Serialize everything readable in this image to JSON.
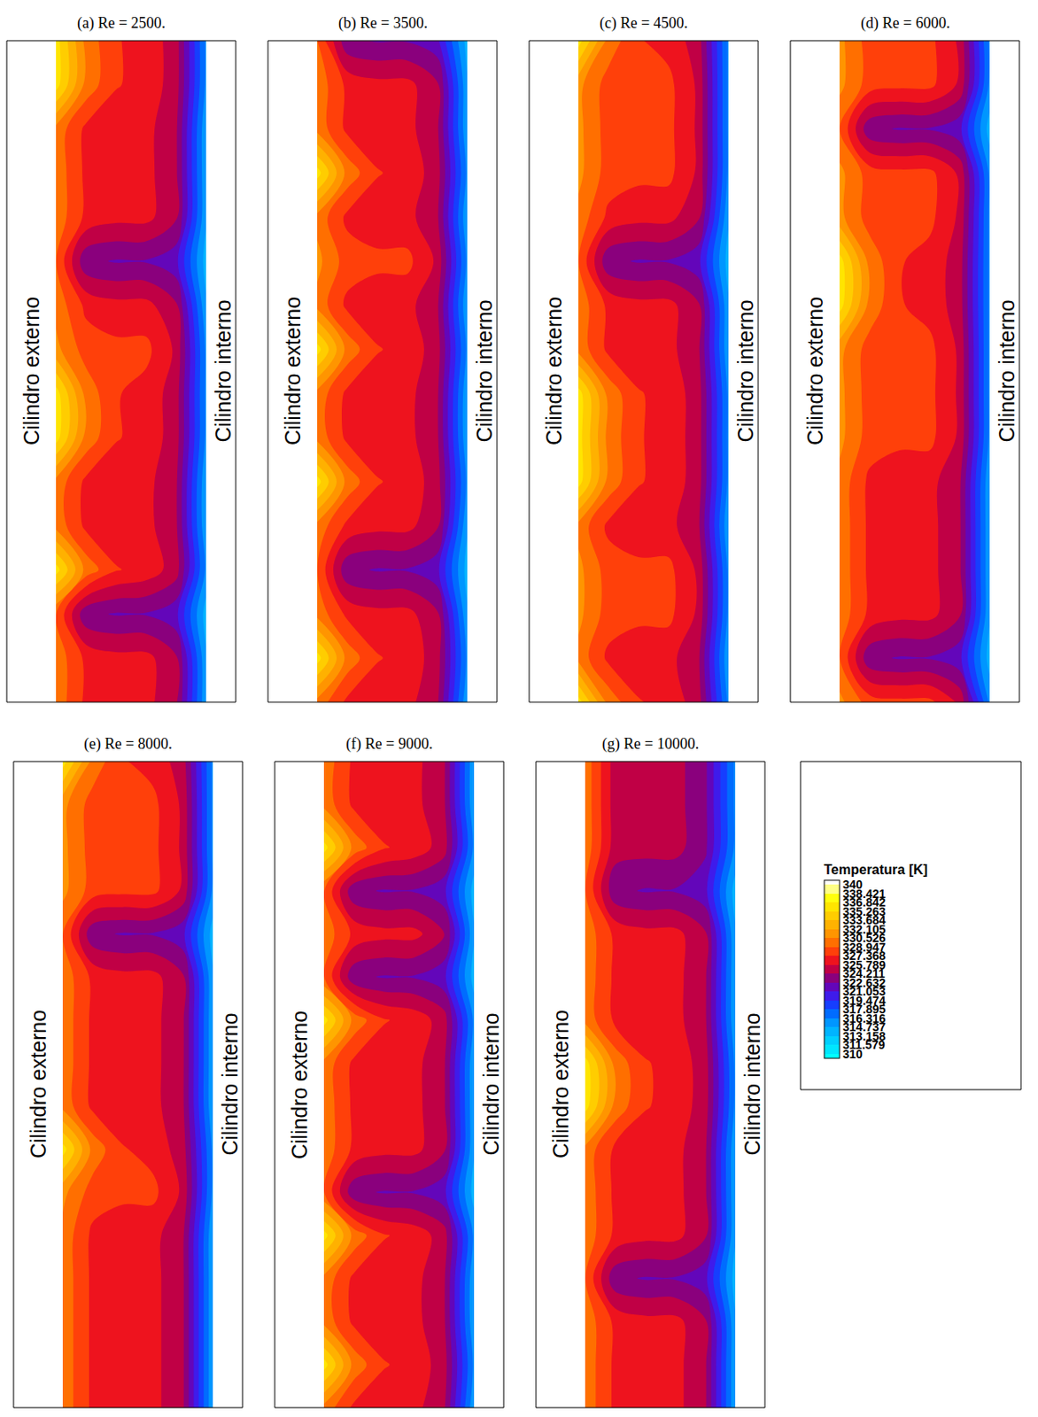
{
  "chart_data": {
    "type": "contour",
    "panels": [
      {
        "title": "(a) Re = 2500.",
        "left_label": "Cilindro externo",
        "right_label": "Cilindro interno",
        "cells": [
          [
            336,
            330,
            327.5,
            326.8,
            325,
            316
          ],
          [
            336,
            330,
            327.5,
            326.8,
            325,
            316
          ],
          [
            330,
            327,
            326.3,
            326.3,
            324.5,
            315
          ],
          [
            330,
            327,
            326.3,
            326.3,
            324.5,
            315
          ],
          [
            330,
            327,
            326.3,
            326.3,
            324.5,
            315
          ],
          [
            329,
            323,
            322.5,
            322.5,
            321.5,
            314
          ],
          [
            330,
            327,
            326.3,
            326.3,
            324.5,
            315
          ],
          [
            331,
            328.2,
            327.8,
            327.8,
            325.5,
            316
          ],
          [
            336,
            330,
            327.5,
            326.8,
            325,
            316
          ],
          [
            336,
            330,
            327.5,
            326.8,
            325,
            316
          ],
          [
            330,
            327,
            326.3,
            326.3,
            324.5,
            315
          ],
          [
            330,
            327,
            326.3,
            326.3,
            324.5,
            315
          ],
          [
            336,
            330,
            327.5,
            326.8,
            325,
            316
          ],
          [
            329,
            323,
            322.5,
            322.5,
            321.5,
            314
          ],
          [
            330,
            327,
            326.3,
            326.3,
            324.5,
            315
          ],
          [
            330,
            327,
            326.3,
            326.3,
            324.5,
            315
          ]
        ]
      },
      {
        "title": "(b) Re = 3500.",
        "left_label": "Cilindro externo",
        "right_label": "Cilindro interno",
        "cells": [
          [
            329,
            323,
            322.5,
            322.5,
            321.5,
            314
          ],
          [
            330,
            327,
            326.3,
            326.3,
            324.5,
            315
          ],
          [
            330,
            327,
            326.3,
            326.3,
            324.5,
            315
          ],
          [
            336,
            330,
            327.5,
            326.8,
            325,
            316
          ],
          [
            330,
            327,
            326.3,
            326.3,
            324.5,
            315
          ],
          [
            331,
            328.2,
            327.8,
            327.8,
            325.5,
            316
          ],
          [
            330,
            327,
            326.3,
            326.3,
            324.5,
            315
          ],
          [
            336,
            330,
            327.5,
            326.8,
            325,
            316
          ],
          [
            330,
            327,
            326.3,
            326.3,
            324.5,
            315
          ],
          [
            330,
            327,
            326.3,
            326.3,
            324.5,
            315
          ],
          [
            336,
            330,
            327.5,
            326.8,
            325,
            316
          ],
          [
            330,
            327,
            326.3,
            326.3,
            324.5,
            315
          ],
          [
            329,
            323,
            322.5,
            322.5,
            321.5,
            314
          ],
          [
            330,
            327,
            326.3,
            326.3,
            324.5,
            315
          ],
          [
            336,
            330,
            327.5,
            326.8,
            325,
            316
          ],
          [
            330,
            327,
            326.3,
            326.3,
            324.5,
            315
          ]
        ]
      },
      {
        "title": "(c) Re = 4500.",
        "left_label": "Cilindro externo",
        "right_label": "Cilindro interno",
        "cells": [
          [
            336,
            330,
            327.5,
            326.8,
            325,
            316
          ],
          [
            331,
            328.2,
            327.8,
            327.8,
            325.5,
            316
          ],
          [
            331,
            328.2,
            327.8,
            327.8,
            325.5,
            316
          ],
          [
            331,
            328.2,
            327.8,
            327.8,
            325.5,
            316
          ],
          [
            330,
            327,
            326.3,
            326.3,
            324.5,
            315
          ],
          [
            329,
            323,
            322.5,
            322.5,
            321.5,
            314
          ],
          [
            330,
            327,
            326.3,
            326.3,
            324.5,
            315
          ],
          [
            330,
            327,
            326.3,
            326.3,
            324.5,
            315
          ],
          [
            336,
            330,
            327.5,
            326.8,
            325,
            316
          ],
          [
            336,
            330,
            327.5,
            326.8,
            325,
            316
          ],
          [
            336,
            330,
            327.5,
            326.8,
            325,
            316
          ],
          [
            330,
            327,
            326.3,
            326.3,
            324.5,
            315
          ],
          [
            331,
            328.2,
            327.8,
            327.8,
            325.5,
            316
          ],
          [
            331,
            328.2,
            327.8,
            327.8,
            325.5,
            316
          ],
          [
            330,
            327,
            326.3,
            326.3,
            324.5,
            315
          ],
          [
            336,
            330,
            327.5,
            326.8,
            325,
            316
          ]
        ]
      },
      {
        "title": "(d) Re = 6000.",
        "left_label": "Cilindro externo",
        "right_label": "Cilindro interno",
        "cells": [
          [
            331,
            328.2,
            327.8,
            327.8,
            325.5,
            316
          ],
          [
            331,
            328.2,
            327.8,
            327.8,
            325.5,
            316
          ],
          [
            329,
            323,
            322.5,
            322.5,
            321.5,
            314
          ],
          [
            331,
            328.2,
            327.8,
            327.8,
            325.5,
            316
          ],
          [
            331,
            328.2,
            327.8,
            327.8,
            325.5,
            316
          ],
          [
            336,
            330,
            327.5,
            326.8,
            325,
            316
          ],
          [
            336,
            330,
            327.5,
            326.8,
            325,
            316
          ],
          [
            331,
            328.2,
            327.8,
            327.8,
            325.5,
            316
          ],
          [
            331,
            328.2,
            327.8,
            327.8,
            325.5,
            316
          ],
          [
            331,
            328.2,
            327.8,
            327.8,
            325.5,
            316
          ],
          [
            330,
            327,
            326.3,
            326.3,
            324.5,
            315
          ],
          [
            330,
            327,
            326.3,
            326.3,
            324.5,
            315
          ],
          [
            330,
            327,
            326.3,
            326.3,
            324.5,
            315
          ],
          [
            330,
            327,
            326.3,
            326.3,
            324.5,
            315
          ],
          [
            329,
            323,
            322.5,
            322.5,
            321.5,
            314
          ],
          [
            331,
            328.2,
            327.8,
            327.8,
            325.5,
            316
          ]
        ]
      },
      {
        "title": "(e) Re = 8000.",
        "left_label": "Cilindro externo",
        "right_label": "Cilindro interno",
        "cells": [
          [
            336,
            330,
            327.5,
            326.8,
            325,
            316
          ],
          [
            331,
            328.2,
            327.8,
            327.8,
            325.5,
            316
          ],
          [
            331,
            328.2,
            327.8,
            327.8,
            325.5,
            316
          ],
          [
            331,
            328.2,
            327.8,
            327.8,
            325.5,
            316
          ],
          [
            329,
            323,
            322.5,
            322.5,
            321.5,
            314
          ],
          [
            330,
            327,
            326.3,
            326.3,
            324.5,
            315
          ],
          [
            330,
            327,
            326.3,
            326.3,
            324.5,
            315
          ],
          [
            330,
            327,
            326.3,
            326.3,
            324.5,
            315
          ],
          [
            330,
            327,
            326.3,
            326.3,
            324.5,
            315
          ],
          [
            336,
            330,
            327.5,
            326.8,
            325,
            316
          ],
          [
            331,
            328.2,
            327.8,
            327.8,
            325.5,
            316
          ],
          [
            330,
            327,
            326.3,
            326.3,
            324.5,
            315
          ],
          [
            330,
            327,
            326.3,
            326.3,
            324.5,
            315
          ],
          [
            330,
            327,
            326.3,
            326.3,
            324.5,
            315
          ],
          [
            330,
            327,
            326.3,
            326.3,
            324.5,
            315
          ],
          [
            330,
            327,
            326.3,
            326.3,
            324.5,
            315
          ]
        ]
      },
      {
        "title": "(f) Re = 9000.",
        "left_label": "Cilindro externo",
        "right_label": "Cilindro interno",
        "cells": [
          [
            330,
            327,
            326.3,
            326.3,
            324.5,
            315
          ],
          [
            330,
            327,
            326.3,
            326.3,
            324.5,
            315
          ],
          [
            336,
            330,
            327.5,
            326.8,
            325,
            316
          ],
          [
            329,
            323,
            322.5,
            322.5,
            321.5,
            314
          ],
          [
            330,
            327,
            326.3,
            326.3,
            324.5,
            315
          ],
          [
            329,
            323,
            322.5,
            322.5,
            321.5,
            314
          ],
          [
            336,
            330,
            327.5,
            326.8,
            325,
            316
          ],
          [
            330,
            327,
            326.3,
            326.3,
            324.5,
            315
          ],
          [
            330,
            327,
            326.3,
            326.3,
            324.5,
            315
          ],
          [
            330,
            327,
            326.3,
            326.3,
            324.5,
            315
          ],
          [
            329,
            323,
            322.5,
            322.5,
            321.5,
            314
          ],
          [
            336,
            330,
            327.5,
            326.8,
            325,
            316
          ],
          [
            330,
            327,
            326.3,
            326.3,
            324.5,
            315
          ],
          [
            330,
            327,
            326.3,
            326.3,
            324.5,
            315
          ],
          [
            336,
            330,
            327.5,
            326.8,
            325,
            316
          ],
          [
            330,
            327,
            326.3,
            326.3,
            324.5,
            315
          ]
        ]
      },
      {
        "title": "(g) Re = 10000.",
        "left_label": "Cilindro externo",
        "right_label": "Cilindro interno",
        "cells": [
          [
            330,
            325,
            324.8,
            324.8,
            323,
            316
          ],
          [
            330,
            325,
            324.8,
            324.8,
            323,
            316
          ],
          [
            330,
            325,
            324.8,
            324.8,
            323,
            316
          ],
          [
            329,
            323,
            322.5,
            322.5,
            321.5,
            314
          ],
          [
            330,
            327,
            326.3,
            326.3,
            324.5,
            315
          ],
          [
            330,
            327,
            326.3,
            326.3,
            324.5,
            315
          ],
          [
            330,
            327,
            326.3,
            326.3,
            324.5,
            315
          ],
          [
            336,
            330,
            327.5,
            326.8,
            325,
            316
          ],
          [
            336,
            330,
            327.5,
            326.8,
            325,
            316
          ],
          [
            330,
            327,
            326.3,
            326.3,
            324.5,
            315
          ],
          [
            330,
            327,
            326.3,
            326.3,
            324.5,
            315
          ],
          [
            330,
            327,
            326.3,
            326.3,
            324.5,
            315
          ],
          [
            329,
            323,
            322.5,
            322.5,
            321.5,
            314
          ],
          [
            330,
            327,
            326.3,
            326.3,
            324.5,
            315
          ],
          [
            330,
            327,
            326.3,
            326.3,
            324.5,
            315
          ],
          [
            330,
            327,
            326.3,
            326.3,
            324.5,
            315
          ]
        ]
      }
    ],
    "colorbar": {
      "title": "Temperatura [K]",
      "range": [
        310,
        340
      ],
      "ticks": [
        340,
        338.421,
        336.842,
        335.263,
        333.684,
        332.105,
        330.526,
        328.947,
        327.368,
        325.789,
        324.211,
        322.632,
        321.053,
        319.474,
        317.895,
        316.316,
        314.737,
        313.158,
        311.579,
        310
      ],
      "colors": [
        "#00ffff",
        "#00e5ff",
        "#00ccff",
        "#00b0ff",
        "#0090ff",
        "#0060ff",
        "#2030ff",
        "#5010e0",
        "#7000a0",
        "#a00060",
        "#e0002a",
        "#ff2a10",
        "#ff6000",
        "#ff8c00",
        "#ffaa00",
        "#ffc800",
        "#ffe000",
        "#ffff00",
        "#ffff80",
        "#ffffff"
      ]
    }
  }
}
